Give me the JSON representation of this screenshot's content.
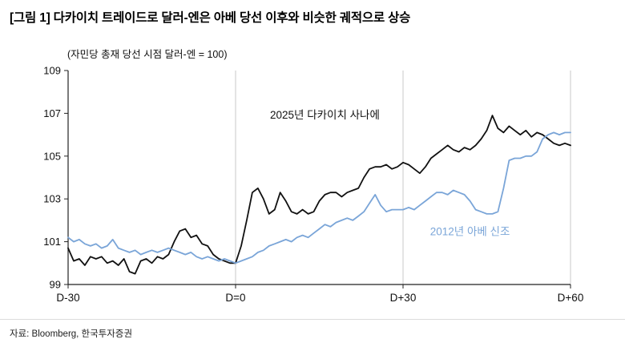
{
  "header": {
    "title": "[그림 1] 다카이치 트레이드로 달러-엔은 아베 당선 이후와 비슷한 궤적으로 상승"
  },
  "chart_data": {
    "type": "line",
    "subtitle": "(자민당 총재 당선 시점 달러-엔 = 100)",
    "xlabel": "",
    "ylabel": "",
    "x_range": [
      -30,
      60
    ],
    "ylim": [
      99,
      109
    ],
    "y_ticks": [
      99,
      101,
      103,
      105,
      107,
      109
    ],
    "x_tick_values": [
      -30,
      0,
      30,
      60
    ],
    "x_ticks": [
      "D-30",
      "D=0",
      "D+30",
      "D+60"
    ],
    "gridlines_x": [
      0,
      30,
      60
    ],
    "grid": "vertical-only",
    "legend_position": "inline-labels",
    "axis_color": "#222222",
    "grid_color": "#c9c9c9",
    "series": [
      {
        "name": "2025년 다카이치 사나에",
        "color": "#111111",
        "x_start": -30,
        "label_anchor": {
          "x": 16,
          "y": 106.75
        },
        "values": [
          100.7,
          100.1,
          100.2,
          99.9,
          100.3,
          100.2,
          100.3,
          100.0,
          100.1,
          99.9,
          100.2,
          99.6,
          99.5,
          100.1,
          100.2,
          100.0,
          100.3,
          100.2,
          100.4,
          101.0,
          101.5,
          101.6,
          101.2,
          101.3,
          100.9,
          100.8,
          100.4,
          100.2,
          100.1,
          100.0,
          100.0,
          100.8,
          102.0,
          103.3,
          103.5,
          103.0,
          102.3,
          102.5,
          103.3,
          102.9,
          102.4,
          102.3,
          102.5,
          102.3,
          102.4,
          102.9,
          103.2,
          103.3,
          103.3,
          103.1,
          103.3,
          103.4,
          103.5,
          104.0,
          104.4,
          104.5,
          104.5,
          104.6,
          104.4,
          104.5,
          104.7,
          104.6,
          104.4,
          104.2,
          104.5,
          104.9,
          105.1,
          105.3,
          105.5,
          105.3,
          105.2,
          105.4,
          105.3,
          105.5,
          105.8,
          106.2,
          106.9,
          106.3,
          106.1,
          106.4,
          106.2,
          106.0,
          106.2,
          105.9,
          106.1,
          106.0,
          105.8,
          105.6,
          105.5,
          105.6,
          105.5
        ]
      },
      {
        "name": "2012년 아베 신조",
        "color": "#7aa5d8",
        "x_start": -30,
        "label_anchor": {
          "x": 42,
          "y": 101.3
        },
        "values": [
          101.2,
          101.0,
          101.1,
          100.9,
          100.8,
          100.9,
          100.7,
          100.8,
          101.1,
          100.7,
          100.6,
          100.5,
          100.6,
          100.4,
          100.5,
          100.6,
          100.5,
          100.6,
          100.7,
          100.6,
          100.5,
          100.4,
          100.5,
          100.3,
          100.2,
          100.3,
          100.2,
          100.1,
          100.2,
          100.1,
          100.0,
          100.1,
          100.2,
          100.3,
          100.5,
          100.6,
          100.8,
          100.9,
          101.0,
          101.1,
          101.0,
          101.2,
          101.3,
          101.2,
          101.4,
          101.6,
          101.8,
          101.7,
          101.9,
          102.0,
          102.1,
          102.0,
          102.2,
          102.4,
          102.8,
          103.2,
          102.7,
          102.4,
          102.5,
          102.5,
          102.5,
          102.6,
          102.5,
          102.7,
          102.9,
          103.1,
          103.3,
          103.3,
          103.2,
          103.4,
          103.3,
          103.2,
          102.9,
          102.5,
          102.4,
          102.3,
          102.3,
          102.4,
          103.5,
          104.8,
          104.9,
          104.9,
          105.0,
          105.0,
          105.2,
          105.8,
          106.0,
          106.1,
          106.0,
          106.1,
          106.1
        ]
      }
    ]
  },
  "footer": {
    "source": "자료: Bloomberg,  한국투자증권"
  }
}
